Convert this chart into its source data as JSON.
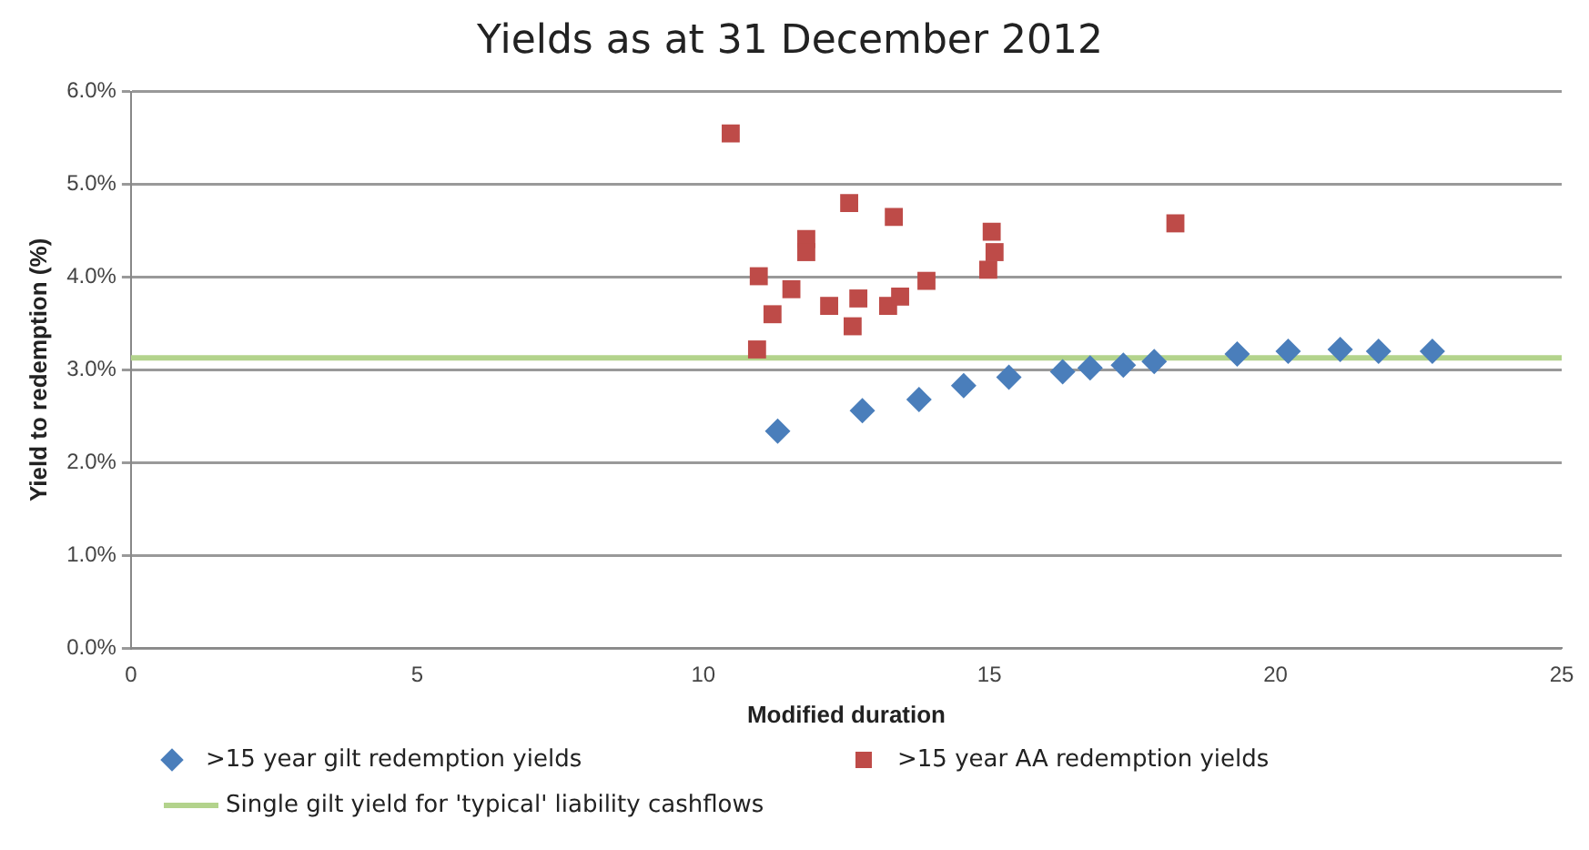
{
  "chart_data": {
    "type": "scatter",
    "title": "Yields as at 31 December 2012",
    "xlabel": "Modified duration",
    "ylabel": "Yield to redemption (%)",
    "xlim": [
      0,
      25
    ],
    "xticks": [
      0,
      5,
      10,
      15,
      20,
      25
    ],
    "ylim": [
      0,
      6
    ],
    "yticks": [
      {
        "value": 0,
        "label": "0.0%"
      },
      {
        "value": 1,
        "label": "1.0%"
      },
      {
        "value": 2,
        "label": "2.0%"
      },
      {
        "value": 3,
        "label": "3.0%"
      },
      {
        "value": 4,
        "label": "4.0%"
      },
      {
        "value": 5,
        "label": "5.0%"
      },
      {
        "value": 6,
        "label": "6.0%"
      }
    ],
    "grid": "y",
    "legend": "bottom",
    "series": [
      {
        "name": ">15 year gilt redemption yields",
        "color": "#4a7ebb",
        "marker": "diamond",
        "x": [
          11.3,
          12.78,
          13.77,
          14.55,
          15.34,
          16.28,
          16.76,
          17.34,
          17.88,
          19.33,
          20.22,
          21.13,
          21.8,
          22.74
        ],
        "values": [
          2.34,
          2.56,
          2.68,
          2.83,
          2.92,
          2.98,
          3.02,
          3.05,
          3.09,
          3.17,
          3.2,
          3.22,
          3.2,
          3.2
        ]
      },
      {
        "name": ">15 year AA redemption yields",
        "color": "#be4b48",
        "marker": "square",
        "x": [
          10.48,
          10.97,
          10.94,
          11.21,
          11.54,
          11.8,
          11.8,
          12.55,
          12.2,
          12.61,
          12.71,
          13.33,
          13.23,
          13.44,
          13.9,
          15.04,
          15.09,
          14.98,
          18.25
        ],
        "values": [
          5.55,
          4.01,
          3.22,
          3.6,
          3.87,
          4.41,
          4.27,
          4.8,
          3.69,
          3.47,
          3.77,
          4.65,
          3.69,
          3.79,
          3.96,
          4.49,
          4.27,
          4.08,
          4.58
        ]
      }
    ],
    "ref_lines": [
      {
        "axis": "y",
        "value": 3.13,
        "label": "Single gilt yield for 'typical' liability cashflows",
        "color": "#b3d38c"
      }
    ]
  }
}
